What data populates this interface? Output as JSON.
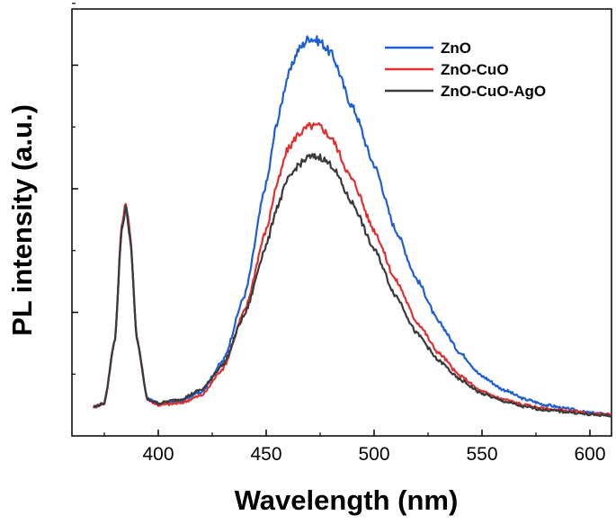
{
  "chart_data": {
    "type": "line",
    "title": "",
    "xlabel": "Wavelength (nm)",
    "ylabel": "PL intensity (a.u.)",
    "xlim": [
      360,
      610
    ],
    "ylim": [
      0,
      1.0
    ],
    "x_ticks": [
      400,
      450,
      500,
      550,
      600
    ],
    "y_tick_labels_shown": false,
    "grid": false,
    "legend_position": "top-right",
    "series": [
      {
        "name": "ZnO",
        "color": "#1f5fd6",
        "x": [
          370,
          375,
          380,
          383,
          385,
          387,
          390,
          395,
          400,
          410,
          420,
          430,
          440,
          450,
          455,
          460,
          465,
          470,
          475,
          480,
          490,
          500,
          510,
          520,
          530,
          540,
          550,
          560,
          570,
          580,
          590,
          600,
          610
        ],
        "y": [
          0.04,
          0.05,
          0.22,
          0.5,
          0.56,
          0.48,
          0.22,
          0.06,
          0.05,
          0.055,
          0.08,
          0.16,
          0.33,
          0.62,
          0.78,
          0.9,
          0.97,
          1.0,
          0.99,
          0.96,
          0.82,
          0.67,
          0.5,
          0.37,
          0.26,
          0.18,
          0.12,
          0.085,
          0.06,
          0.045,
          0.035,
          0.025,
          0.02
        ]
      },
      {
        "name": "ZnO-CuO",
        "color": "#e03030",
        "x": [
          370,
          375,
          380,
          383,
          385,
          387,
          390,
          395,
          400,
          410,
          420,
          430,
          440,
          450,
          455,
          460,
          465,
          470,
          475,
          480,
          490,
          500,
          510,
          520,
          530,
          540,
          550,
          560,
          570,
          580,
          590,
          600,
          610
        ],
        "y": [
          0.04,
          0.05,
          0.22,
          0.51,
          0.57,
          0.49,
          0.22,
          0.06,
          0.045,
          0.05,
          0.07,
          0.14,
          0.29,
          0.5,
          0.62,
          0.71,
          0.75,
          0.77,
          0.77,
          0.74,
          0.63,
          0.5,
          0.37,
          0.26,
          0.18,
          0.12,
          0.08,
          0.06,
          0.045,
          0.035,
          0.03,
          0.022,
          0.02
        ]
      },
      {
        "name": "ZnO-CuO-AgO",
        "color": "#3a3a3a",
        "x": [
          370,
          375,
          380,
          383,
          385,
          387,
          390,
          395,
          400,
          410,
          420,
          430,
          440,
          450,
          455,
          460,
          465,
          470,
          475,
          480,
          490,
          500,
          510,
          520,
          530,
          540,
          550,
          560,
          570,
          580,
          590,
          600,
          610
        ],
        "y": [
          0.04,
          0.05,
          0.22,
          0.5,
          0.56,
          0.48,
          0.22,
          0.06,
          0.05,
          0.06,
          0.085,
          0.15,
          0.28,
          0.46,
          0.56,
          0.63,
          0.67,
          0.69,
          0.69,
          0.67,
          0.57,
          0.45,
          0.33,
          0.23,
          0.16,
          0.11,
          0.075,
          0.055,
          0.04,
          0.032,
          0.027,
          0.02,
          0.018
        ]
      }
    ]
  }
}
